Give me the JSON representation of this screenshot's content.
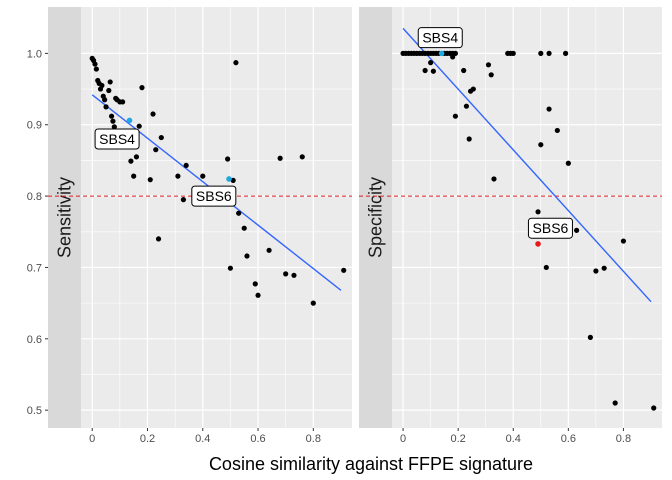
{
  "chart_data": {
    "type": "scatter",
    "xlabel": "Cosine similarity against FFPE signature",
    "xlim": [
      -0.16,
      0.94
    ],
    "x_ticks": [
      0,
      0.2,
      0.4,
      0.6,
      0.8
    ],
    "x_tick_labels": [
      "0",
      "0.2",
      "0.4",
      "0.6",
      "0.8"
    ],
    "ylim": [
      0.475,
      1.065
    ],
    "y_ticks": [
      0.5,
      0.6,
      0.7,
      0.8,
      0.9,
      1.0
    ],
    "y_tick_labels": [
      "0.5",
      "0.6",
      "0.7",
      "0.8",
      "0.9",
      "1.0"
    ],
    "colors": {
      "panel_bg": "#ebebeb",
      "grid": "#ffffff",
      "strip_bg": "#d9d9d9",
      "points": "#000000",
      "trend": "#3366ff",
      "reference_line": "#e41a1c",
      "highlight_blue": "#1fa9e1",
      "highlight_red": "#e41a1c"
    },
    "grid": true,
    "panels": [
      {
        "strip_label": "Sensitivity",
        "reference_y": 0.8,
        "trend": {
          "x": [
            0.0,
            0.9
          ],
          "y": [
            0.942,
            0.668
          ]
        },
        "points": [
          [
            0.0,
            0.993
          ],
          [
            0.005,
            0.99
          ],
          [
            0.01,
            0.985
          ],
          [
            0.015,
            0.978
          ],
          [
            0.02,
            0.962
          ],
          [
            0.025,
            0.958
          ],
          [
            0.03,
            0.95
          ],
          [
            0.035,
            0.955
          ],
          [
            0.04,
            0.94
          ],
          [
            0.045,
            0.935
          ],
          [
            0.05,
            0.925
          ],
          [
            0.06,
            0.948
          ],
          [
            0.065,
            0.96
          ],
          [
            0.07,
            0.912
          ],
          [
            0.075,
            0.905
          ],
          [
            0.08,
            0.897
          ],
          [
            0.085,
            0.937
          ],
          [
            0.09,
            0.935
          ],
          [
            0.1,
            0.932
          ],
          [
            0.11,
            0.932
          ],
          [
            0.14,
            0.849
          ],
          [
            0.15,
            0.828
          ],
          [
            0.16,
            0.855
          ],
          [
            0.17,
            0.898
          ],
          [
            0.18,
            0.952
          ],
          [
            0.21,
            0.823
          ],
          [
            0.22,
            0.915
          ],
          [
            0.23,
            0.865
          ],
          [
            0.24,
            0.74
          ],
          [
            0.25,
            0.882
          ],
          [
            0.31,
            0.828
          ],
          [
            0.33,
            0.795
          ],
          [
            0.34,
            0.843
          ],
          [
            0.4,
            0.828
          ],
          [
            0.49,
            0.852
          ],
          [
            0.5,
            0.699
          ],
          [
            0.51,
            0.822
          ],
          [
            0.52,
            0.987
          ],
          [
            0.53,
            0.776
          ],
          [
            0.55,
            0.755
          ],
          [
            0.56,
            0.716
          ],
          [
            0.59,
            0.677
          ],
          [
            0.6,
            0.661
          ],
          [
            0.64,
            0.724
          ],
          [
            0.68,
            0.853
          ],
          [
            0.7,
            0.691
          ],
          [
            0.73,
            0.689
          ],
          [
            0.76,
            0.855
          ],
          [
            0.8,
            0.65
          ],
          [
            0.91,
            0.696
          ]
        ],
        "highlights": [
          {
            "label": "SBS4",
            "x": 0.135,
            "y": 0.906,
            "color": "#1fa9e1"
          },
          {
            "label": "SBS6",
            "x": 0.495,
            "y": 0.824,
            "color": "#1fa9e1"
          }
        ],
        "annotations": [
          {
            "label": "SBS4",
            "x": 0.09,
            "y": 0.88
          },
          {
            "label": "SBS6",
            "x": 0.44,
            "y": 0.8
          }
        ]
      },
      {
        "strip_label": "Specificity",
        "reference_y": 0.8,
        "trend": {
          "x": [
            0.0,
            0.9
          ],
          "y": [
            1.035,
            0.652
          ]
        },
        "points": [
          [
            0.0,
            1.0
          ],
          [
            0.01,
            1.0
          ],
          [
            0.02,
            1.0
          ],
          [
            0.03,
            1.0
          ],
          [
            0.04,
            1.0
          ],
          [
            0.05,
            1.0
          ],
          [
            0.06,
            1.0
          ],
          [
            0.07,
            1.0
          ],
          [
            0.08,
            1.0
          ],
          [
            0.09,
            1.0
          ],
          [
            0.1,
            1.0
          ],
          [
            0.11,
            1.0
          ],
          [
            0.12,
            1.0
          ],
          [
            0.13,
            1.0
          ],
          [
            0.15,
            1.0
          ],
          [
            0.16,
            1.0
          ],
          [
            0.17,
            1.0
          ],
          [
            0.18,
            1.0
          ],
          [
            0.19,
            1.0
          ],
          [
            0.38,
            1.0
          ],
          [
            0.39,
            1.0
          ],
          [
            0.4,
            1.0
          ],
          [
            0.5,
            1.0
          ],
          [
            0.53,
            1.0
          ],
          [
            0.59,
            1.0
          ],
          [
            0.08,
            0.976
          ],
          [
            0.1,
            0.987
          ],
          [
            0.11,
            0.975
          ],
          [
            0.18,
            0.995
          ],
          [
            0.22,
            0.976
          ],
          [
            0.23,
            0.926
          ],
          [
            0.24,
            0.88
          ],
          [
            0.245,
            0.947
          ],
          [
            0.255,
            0.95
          ],
          [
            0.19,
            0.912
          ],
          [
            0.31,
            0.984
          ],
          [
            0.32,
            0.97
          ],
          [
            0.33,
            0.824
          ],
          [
            0.49,
            0.778
          ],
          [
            0.5,
            0.872
          ],
          [
            0.52,
            0.7
          ],
          [
            0.53,
            0.922
          ],
          [
            0.56,
            0.892
          ],
          [
            0.6,
            0.846
          ],
          [
            0.63,
            0.752
          ],
          [
            0.68,
            0.602
          ],
          [
            0.7,
            0.695
          ],
          [
            0.73,
            0.699
          ],
          [
            0.77,
            0.51
          ],
          [
            0.8,
            0.737
          ],
          [
            0.91,
            0.503
          ]
        ],
        "highlights": [
          {
            "label": "SBS4",
            "x": 0.14,
            "y": 1.0,
            "color": "#1fa9e1"
          },
          {
            "label": "SBS6",
            "x": 0.49,
            "y": 0.733,
            "color": "#e41a1c"
          }
        ],
        "annotations": [
          {
            "label": "SBS4",
            "x": 0.135,
            "y": 1.022
          },
          {
            "label": "SBS6",
            "x": 0.535,
            "y": 0.755
          }
        ]
      }
    ]
  }
}
